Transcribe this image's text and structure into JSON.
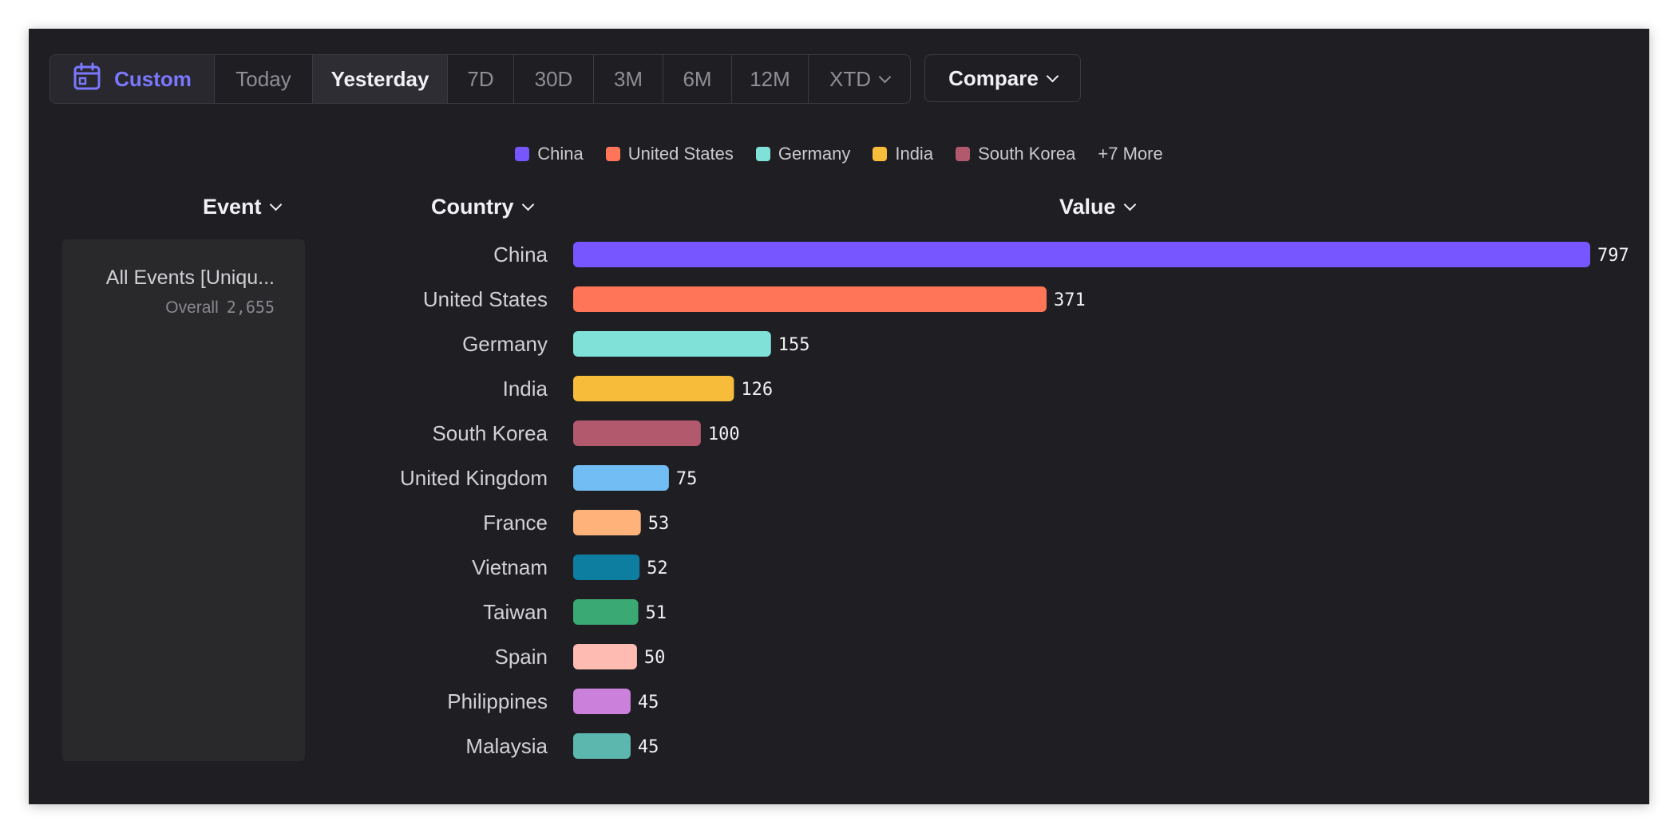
{
  "toolbar": {
    "custom_label": "Custom",
    "ranges": [
      {
        "label": "Today",
        "active": false
      },
      {
        "label": "Yesterday",
        "active": true
      },
      {
        "label": "7D",
        "active": false
      },
      {
        "label": "30D",
        "active": false
      },
      {
        "label": "3M",
        "active": false
      },
      {
        "label": "6M",
        "active": false
      },
      {
        "label": "12M",
        "active": false
      },
      {
        "label": "XTD",
        "active": false,
        "dropdown": true
      }
    ],
    "compare_label": "Compare"
  },
  "legend": {
    "items": [
      {
        "label": "China",
        "color": "#7856ff"
      },
      {
        "label": "United States",
        "color": "#ff7557"
      },
      {
        "label": "Germany",
        "color": "#80e1d9"
      },
      {
        "label": "India",
        "color": "#f8bc3b"
      },
      {
        "label": "South Korea",
        "color": "#b2596e"
      }
    ],
    "more_label": "+7 More"
  },
  "headers": {
    "event": "Event",
    "country": "Country",
    "value": "Value"
  },
  "event_card": {
    "name": "All Events [Uniqu...",
    "sub_label": "Overall",
    "sub_value": "2,655"
  },
  "chart_data": {
    "type": "bar",
    "orientation": "horizontal",
    "categories": [
      "China",
      "United States",
      "Germany",
      "India",
      "South Korea",
      "United Kingdom",
      "France",
      "Vietnam",
      "Taiwan",
      "Spain",
      "Philippines",
      "Malaysia"
    ],
    "values": [
      797,
      371,
      155,
      126,
      100,
      75,
      53,
      52,
      51,
      50,
      45,
      45
    ],
    "colors": [
      "#7856ff",
      "#ff7557",
      "#80e1d9",
      "#f8bc3b",
      "#b2596e",
      "#72bef4",
      "#ffb27a",
      "#0d7ea0",
      "#3ba974",
      "#febbb2",
      "#cb80dc",
      "#5cb7af"
    ],
    "xlabel": "Value",
    "ylabel": "Country",
    "grid": false
  }
}
